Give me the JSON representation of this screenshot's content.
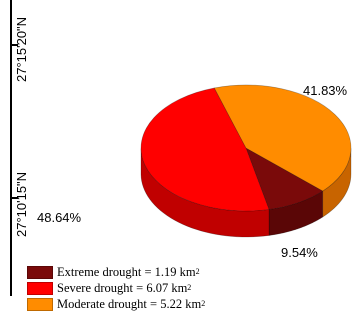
{
  "axis": {
    "lat_top": "27°15'20\"N",
    "lat_bottom": "27°10'15\"N"
  },
  "chart_data": {
    "type": "pie",
    "style": "3d",
    "categories": [
      "Extreme drought",
      "Severe drought",
      "Moderate drought"
    ],
    "values": [
      9.54,
      48.64,
      41.83
    ],
    "value_labels": [
      "9.54%",
      "48.64%",
      "41.83%"
    ],
    "areas_km2": [
      1.19,
      6.07,
      5.22
    ],
    "colors": {
      "top": [
        "#7a0a0a",
        "#ff0000",
        "#ff8c00"
      ],
      "side": [
        "#5a0606",
        "#c00000",
        "#c86400"
      ]
    },
    "legend": [
      {
        "label": "Extreme drought = 1.19 km",
        "sup": "2"
      },
      {
        "label": "Severe drought = 6.07 km",
        "sup": "2"
      },
      {
        "label": "Moderate drought = 5.22 km",
        "sup": "2"
      }
    ],
    "legend_position": "bottom-left"
  }
}
